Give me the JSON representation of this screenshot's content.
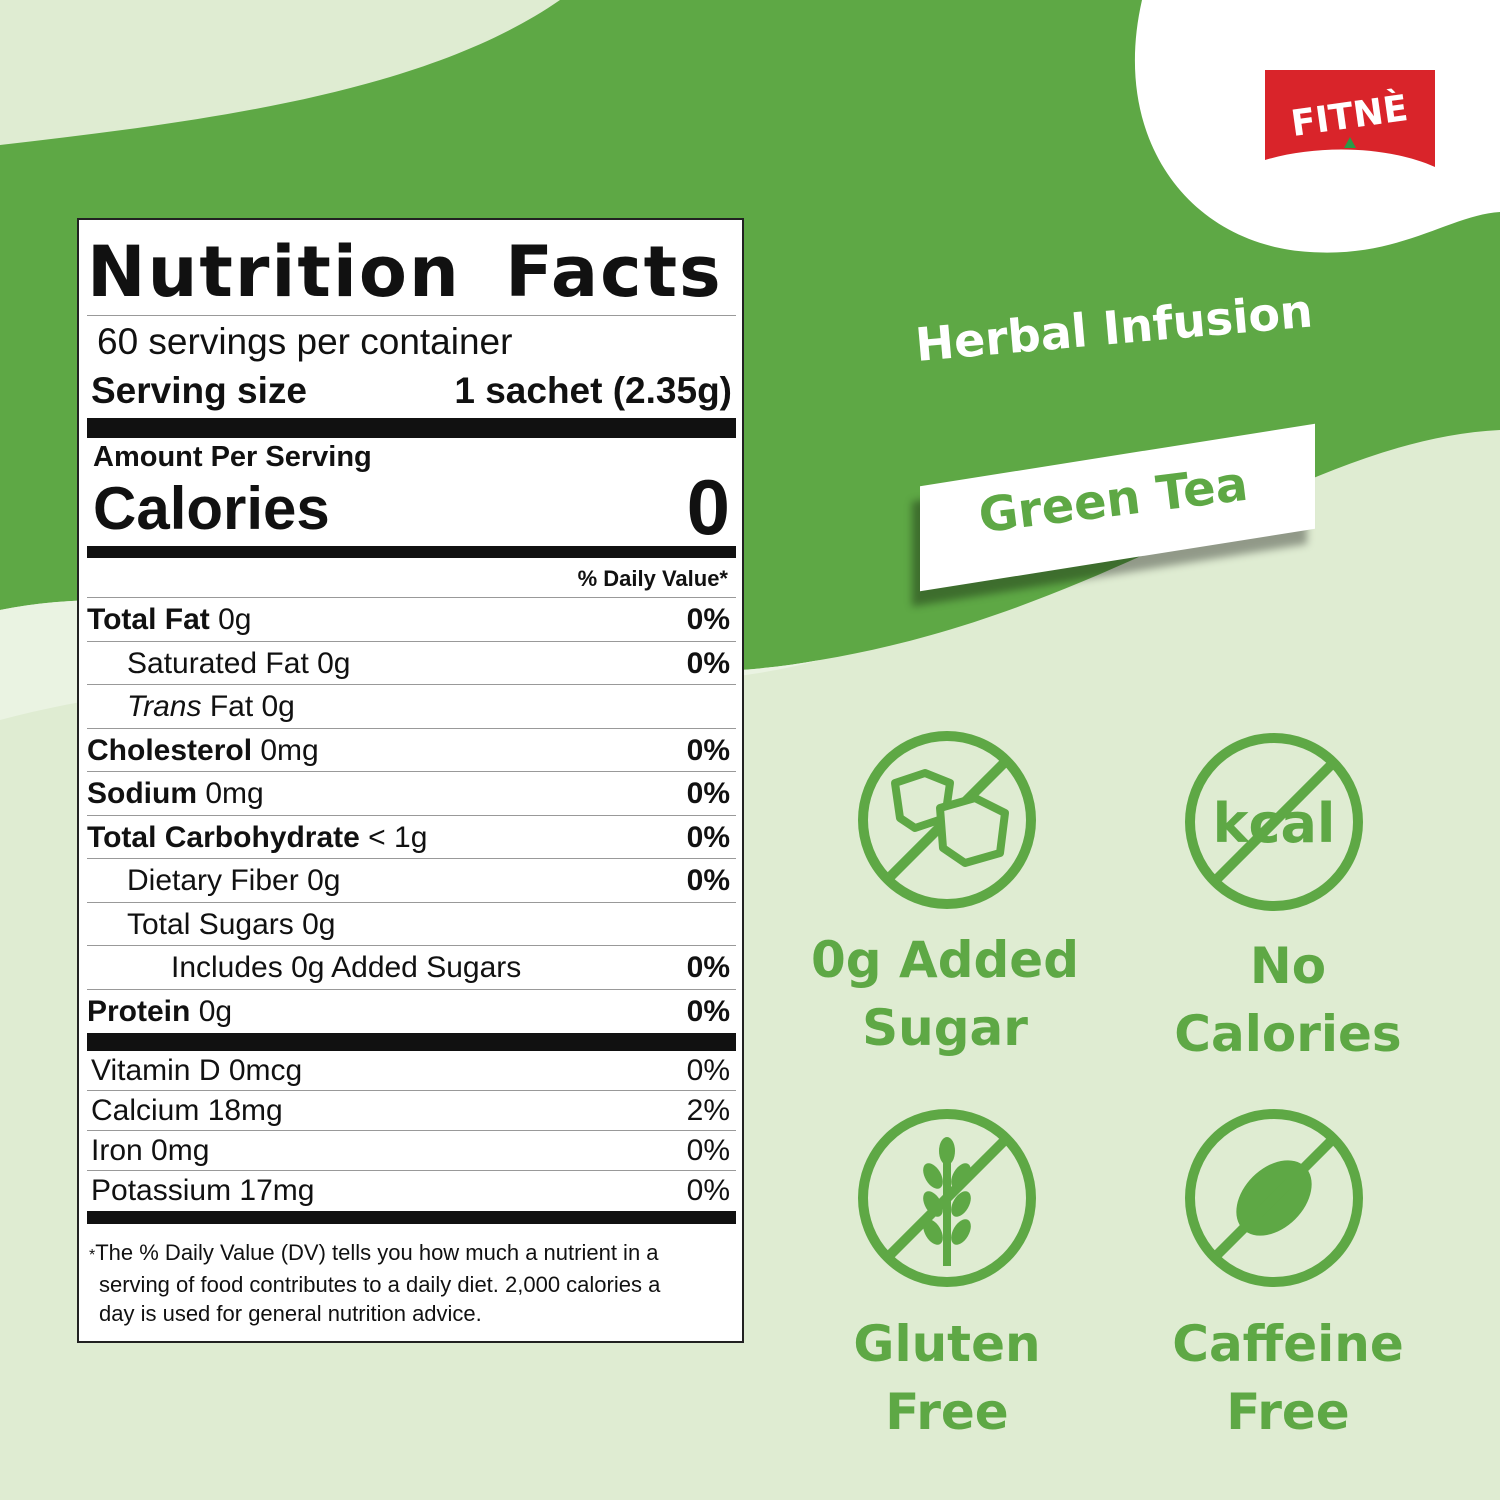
{
  "brand": {
    "logo_text": "FITNÈ",
    "logo_color": "#d9242a"
  },
  "colors": {
    "dark_green": "#5ea845",
    "light_green": "#dfecd2"
  },
  "nutrition": {
    "title": "Nutrition Facts",
    "servings": "60 servings per container",
    "serving_size_label": "Serving size",
    "serving_size_value": "1 sachet (2.35g)",
    "amount_per_serving": "Amount Per Serving",
    "calories_label": "Calories",
    "calories_value": "0",
    "daily_value_header": "% Daily Value*",
    "rows": [
      {
        "name": "Total Fat",
        "amount": "0g",
        "dv": "0%"
      },
      {
        "name": "Saturated Fat",
        "amount": "0g",
        "dv": "0%"
      },
      {
        "name": "Trans",
        "suffix": "Fat 0g",
        "dv": ""
      },
      {
        "name": "Cholesterol",
        "amount": "0mg",
        "dv": "0%"
      },
      {
        "name": "Sodium",
        "amount": "0mg",
        "dv": "0%"
      },
      {
        "name": "Total Carbohydrate",
        "amount": "< 1g",
        "dv": "0%"
      },
      {
        "name": "Dietary Fiber",
        "amount": "0g",
        "dv": "0%"
      },
      {
        "name": "Total Sugars",
        "amount": "0g",
        "dv": ""
      },
      {
        "name": "Includes 0g Added Sugars",
        "amount": "",
        "dv": "0%"
      },
      {
        "name": "Protein",
        "amount": "0g",
        "dv": "0%"
      }
    ],
    "vitamins": [
      {
        "name": "Vitamin D 0mcg",
        "dv": "0%"
      },
      {
        "name": "Calcium 18mg",
        "dv": "2%"
      },
      {
        "name": "Iron 0mg",
        "dv": "0%"
      },
      {
        "name": "Potassium 17mg",
        "dv": "0%"
      }
    ],
    "footnote_star": "*",
    "footnote_lines": [
      "The % Daily Value (DV) tells you how much a nutrient in a",
      "serving of food contributes to a daily diet. 2,000 calories a",
      "day is used for general nutrition advice."
    ]
  },
  "product": {
    "category": "Herbal Infusion",
    "name": "Green Tea"
  },
  "features": [
    {
      "line1": "0g Added",
      "line2": "Sugar",
      "icon": "no-sugar-cubes-icon"
    },
    {
      "line1": "No",
      "line2": "Calories",
      "icon": "no-kcal-icon",
      "icon_text": "kcal"
    },
    {
      "line1": "Gluten",
      "line2": "Free",
      "icon": "no-wheat-icon"
    },
    {
      "line1": "Caffeine",
      "line2": "Free",
      "icon": "no-coffee-bean-icon"
    }
  ]
}
